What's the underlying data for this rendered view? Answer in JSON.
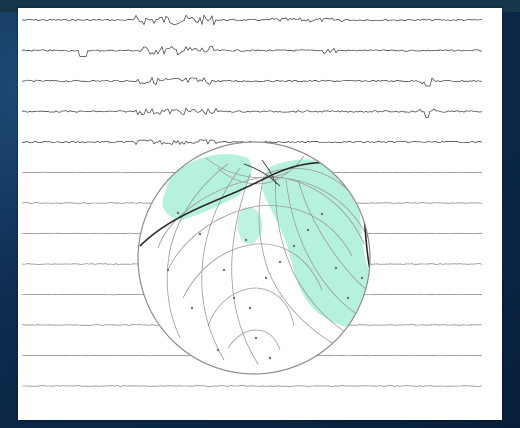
{
  "figure": {
    "channels": [
      "",
      "",
      "",
      "",
      "",
      "",
      "",
      "",
      "",
      "",
      "",
      "",
      ""
    ],
    "colors": {
      "background": "#0c2a4c",
      "sheet": "#ffffff",
      "trace": "#6e6e6e",
      "trace_dark": "#3a3a3a",
      "positive_region": "#a8eed8",
      "contour": "#9a9a9a",
      "sphere_outline": "#8c8c8c",
      "nodal_line": "#2a2a2a"
    }
  }
}
